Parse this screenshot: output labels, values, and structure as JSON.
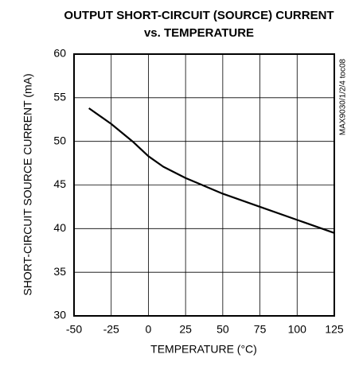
{
  "chart_data": {
    "type": "line",
    "title": "OUTPUT SHORT-CIRCUIT (SOURCE) CURRENT",
    "subtitle": "vs. TEMPERATURE",
    "x_label": "TEMPERATURE (°C)",
    "y_label": "SHORT-CIRCUIT SOURCE CURRENT (mA)",
    "annotation": "MAX9030/1/2/4 toc08",
    "x": [
      -40,
      -25,
      -10,
      0,
      10,
      25,
      50,
      75,
      100,
      125
    ],
    "series": [
      {
        "name": "source current",
        "color": "#000000",
        "values": [
          53.8,
          52.0,
          49.9,
          48.3,
          47.1,
          45.8,
          44.0,
          42.5,
          41.0,
          39.5
        ]
      }
    ],
    "xlim": [
      -50,
      125
    ],
    "xticks": [
      -50,
      -25,
      0,
      25,
      50,
      75,
      100,
      125
    ],
    "ylim": [
      30,
      60
    ],
    "yticks": [
      30,
      35,
      40,
      45,
      50,
      55,
      60
    ],
    "grid": true
  }
}
